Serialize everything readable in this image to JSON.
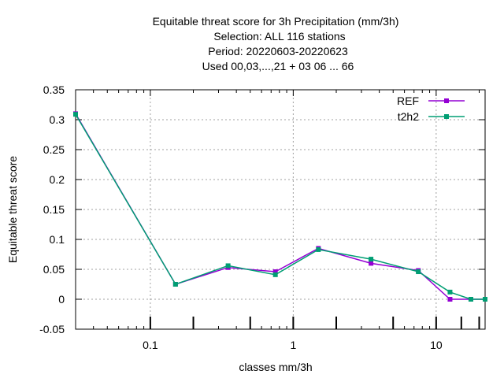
{
  "chart_data": {
    "type": "line",
    "title_lines": [
      "Equitable threat score  for 3h Precipitation (mm/3h)",
      "Selection: ALL    116 stations",
      "Period: 20220603-20220623",
      "Used  00,03,...,21  + 03 06 ... 66"
    ],
    "xlabel": "classes mm/3h",
    "ylabel": "Equitable threat score",
    "x_scale": "log",
    "xlim": [
      0.03,
      22
    ],
    "ylim": [
      -0.05,
      0.35
    ],
    "y_ticks": [
      -0.05,
      0,
      0.05,
      0.1,
      0.15,
      0.2,
      0.25,
      0.3,
      0.35
    ],
    "y_tick_labels": [
      "-0.05",
      "0",
      "0.05",
      "0.1",
      "0.15",
      "0.2",
      "0.25",
      "0.3",
      "0.35"
    ],
    "x_ticks": [
      0.1,
      1,
      10
    ],
    "x_tick_labels": [
      "0.1",
      "1",
      "10"
    ],
    "class_marks": [
      0.1,
      0.2,
      0.5,
      1,
      2,
      5,
      10,
      15,
      20
    ],
    "grid": true,
    "legend_position": "top-right",
    "series": [
      {
        "name": "REF",
        "color": "#9400d3",
        "marker": "square",
        "x": [
          0.03,
          0.15,
          0.35,
          0.75,
          1.5,
          3.5,
          7.5,
          12.5,
          17.5,
          22
        ],
        "y": [
          0.31,
          0.025,
          0.053,
          0.046,
          0.085,
          0.06,
          0.048,
          0.0,
          0.0,
          0.0
        ]
      },
      {
        "name": "t2h2",
        "color": "#009e73",
        "marker": "square",
        "x": [
          0.03,
          0.15,
          0.35,
          0.75,
          1.5,
          3.5,
          7.5,
          12.5,
          17.5,
          22
        ],
        "y": [
          0.309,
          0.025,
          0.056,
          0.041,
          0.083,
          0.067,
          0.046,
          0.012,
          0.0,
          0.0
        ]
      }
    ]
  }
}
